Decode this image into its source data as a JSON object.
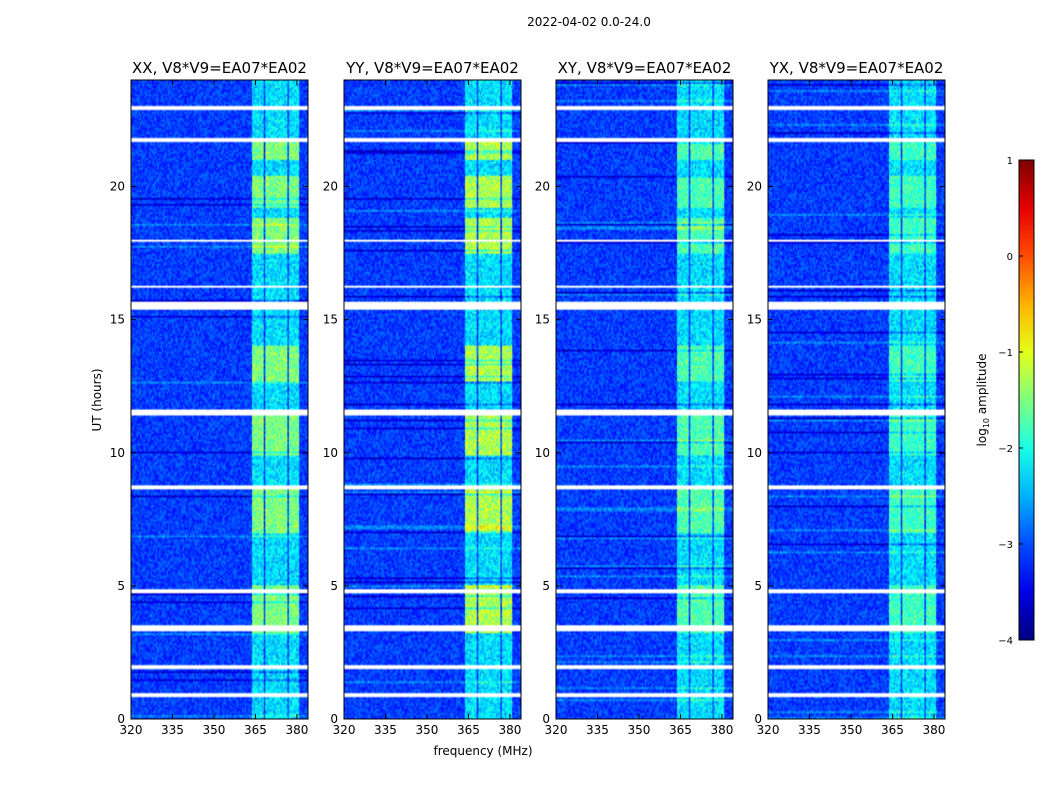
{
  "figure_title": "2022-04-02 0.0-24.0",
  "chart_data": {
    "type": "heatmap",
    "panels": [
      {
        "title": "XX, V8*V9=EA07*EA02",
        "polarization": "XX"
      },
      {
        "title": "YY, V8*V9=EA07*EA02",
        "polarization": "YY"
      },
      {
        "title": "XY, V8*V9=EA07*EA02",
        "polarization": "XY"
      },
      {
        "title": "YX, V8*V9=EA07*EA02",
        "polarization": "YX"
      }
    ],
    "xlabel": "frequency (MHz)",
    "ylabel": "UT (hours)",
    "xlim": [
      320,
      384
    ],
    "ylim": [
      0,
      24
    ],
    "xticks": [
      320,
      335,
      350,
      365,
      380
    ],
    "yticks": [
      0,
      5,
      10,
      15,
      20
    ],
    "colorbar": {
      "label_prefix": "log",
      "label_sub": "10",
      "label_suffix": " amplitude",
      "range": [
        -4,
        1
      ],
      "ticks": [
        1,
        0,
        -1,
        -2,
        -3,
        -4
      ],
      "colormap": "jet"
    },
    "rfi_bands_mhz": [
      [
        363.5,
        368
      ],
      [
        368.5,
        372
      ],
      [
        372.5,
        376.5
      ],
      [
        377,
        381
      ]
    ],
    "rfi_active_hours": [
      [
        3.2,
        5.0
      ],
      [
        7.0,
        8.6
      ],
      [
        9.9,
        11.5
      ],
      [
        12.7,
        14.0
      ],
      [
        17.5,
        18.8
      ],
      [
        19.2,
        20.4
      ],
      [
        21.0,
        21.7
      ]
    ],
    "flagged_hours": [
      [
        0.8,
        0.95
      ],
      [
        1.9,
        2.05
      ],
      [
        3.3,
        3.55
      ],
      [
        4.75,
        4.9
      ],
      [
        8.6,
        8.8
      ],
      [
        11.4,
        11.65
      ],
      [
        15.35,
        15.7
      ],
      [
        16.2,
        16.3
      ],
      [
        17.9,
        18.0
      ],
      [
        21.7,
        21.85
      ],
      [
        22.9,
        23.0
      ]
    ]
  }
}
